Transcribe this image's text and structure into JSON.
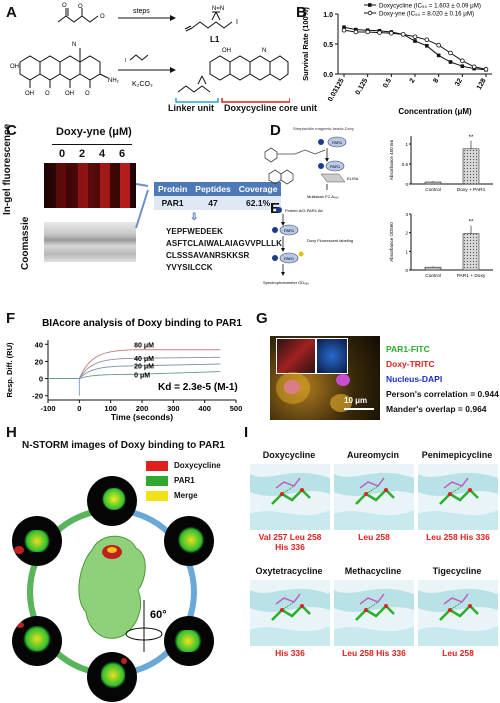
{
  "panels": {
    "a": "A",
    "b": "B",
    "c": "C",
    "d": "D",
    "e": "E",
    "f": "F",
    "g": "G",
    "h": "H",
    "i": "I"
  },
  "panel_a": {
    "steps_label": "steps",
    "l1_label": "L1",
    "reagent": "K₂CO₃",
    "linker_label": "Linker unit",
    "core_label": "Doxycycline core unit"
  },
  "chart_b": {
    "type": "line",
    "ylabel": "Survival Rate (100%)",
    "xlabel": "Concentration (μM)",
    "x": [
      "0.03125",
      "0.125",
      "0.5",
      "2",
      "8",
      "32",
      "128"
    ],
    "xvals": [
      0.03125,
      0.0625,
      0.125,
      0.25,
      0.5,
      1,
      2,
      4,
      8,
      16,
      32,
      64,
      128
    ],
    "ylim": [
      0,
      1.0
    ],
    "yticks": [
      "0.0",
      "0.5",
      "1.0"
    ],
    "series": [
      {
        "name": "Doxycycline (IC₅₀ = 1.603 ± 0.09 μM)",
        "values": [
          0.78,
          0.74,
          0.73,
          0.72,
          0.7,
          0.66,
          0.55,
          0.47,
          0.31,
          0.2,
          0.13,
          0.09,
          0.07
        ]
      },
      {
        "name": "Doxy-yne (IC₅₀ = 8.020 ± 0.16 μM)",
        "values": [
          0.73,
          0.7,
          0.7,
          0.69,
          0.68,
          0.66,
          0.62,
          0.57,
          0.48,
          0.35,
          0.22,
          0.12,
          0.08
        ]
      }
    ]
  },
  "panel_c": {
    "title": "Doxy-yne (μM)",
    "lanes": [
      "0",
      "2",
      "4",
      "6"
    ],
    "fluor_label": "In-gel fluorescence",
    "coomassie_label": "Coomassie",
    "table_headers": [
      "Protein",
      "Peptides",
      "Coverage"
    ],
    "table_row": [
      "PAR1",
      "47",
      "62.1%"
    ],
    "peptides": [
      "YEPFWEDEEK",
      "ASFTCLAIWALAIAGVVPLLLK",
      "CLSSSAVANRSKKSR",
      "YVYSILCCK"
    ]
  },
  "panel_d": {
    "labels": [
      "Streptavidin magnetic beads-Doxy",
      "PAR1",
      "PAR1",
      "ELISA",
      "Multiskan FC A₄₅₀"
    ],
    "ylabel": "Absorbance 450 nm",
    "categories": [
      "Control",
      "Doxy + PAR1"
    ],
    "values": [
      0.05,
      0.88
    ],
    "sig": "**"
  },
  "panel_e": {
    "labels": [
      "Protein A/G-PAR1 Ab",
      "PAR1",
      "Doxy Fluorescent labeling",
      "PAR1",
      "Spectrophotometer OD₅₆₀"
    ],
    "ylabel": "Absorbance OD560",
    "categories": [
      "Control",
      "PAR1 + Doxy"
    ],
    "values": [
      0.15,
      1.95
    ],
    "sig": "**"
  },
  "chart_f": {
    "type": "line",
    "title": "BIAcore analysis of Doxy binding to PAR1",
    "ylabel": "Resp. Diff. (RU)",
    "xlabel": "Time (seconds)",
    "xticks": [
      "-100",
      "0",
      "100",
      "200",
      "300",
      "400",
      "500"
    ],
    "yticks": [
      "40",
      "20",
      "0",
      "-20"
    ],
    "series_labels": [
      "80 μM",
      "40 μM",
      "20 μM",
      "0 μM"
    ],
    "kd": "Kd = 2.3e-5 (M-1)"
  },
  "panel_g": {
    "legend": [
      "PAR1-FITC",
      "Doxy-TRITC",
      "Nucleus-DAPI",
      "Person's correlation = 0.944",
      "Mander's overlap = 0.964"
    ],
    "scale": "10 μm"
  },
  "panel_h": {
    "title": "N-STORM images of Doxy binding to PAR1",
    "legend": [
      "Doxycycline",
      "PAR1",
      "Merge"
    ],
    "angle": "60°"
  },
  "panel_i": {
    "compounds": [
      {
        "name": "Doxycycline",
        "residues": [
          "Val 257 Leu 258",
          "His 336"
        ]
      },
      {
        "name": "Aureomycin",
        "residues": [
          "Leu 258"
        ]
      },
      {
        "name": "Penimepicycline",
        "residues": [
          "Leu 258 His 336"
        ]
      },
      {
        "name": "Oxytetracycline",
        "residues": [
          "His 336"
        ]
      },
      {
        "name": "Methacycline",
        "residues": [
          "Leu 258 His 336"
        ]
      },
      {
        "name": "Tigecycline",
        "residues": [
          "Leu 258"
        ]
      }
    ]
  },
  "colors": {
    "red": "#e0201c",
    "green": "#2ea82e",
    "yellow": "#f2e21a",
    "blue": "#1b2fd0",
    "teal_table": "#4e79b8"
  }
}
